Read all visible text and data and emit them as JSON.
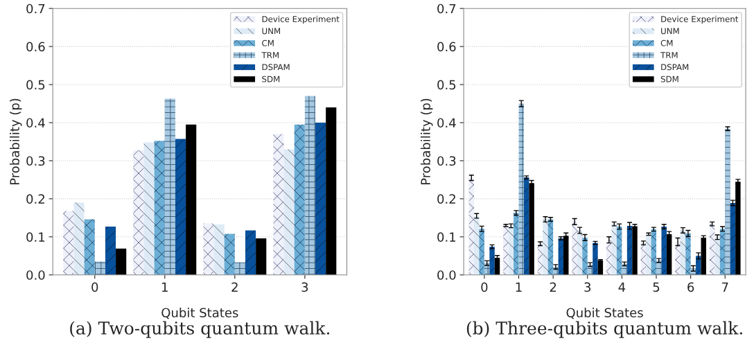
{
  "chart_data": [
    {
      "type": "bar",
      "xlabel": "Qubit States",
      "ylabel": "Probability (p)",
      "categories": [
        "0",
        "1",
        "2",
        "3"
      ],
      "ylim": [
        0,
        0.7
      ],
      "yticks": [
        {
          "value": 0,
          "label": "0.0"
        },
        0.1,
        0.2,
        0.3,
        0.4,
        0.5,
        0.6,
        0.7
      ],
      "grid": "y",
      "legend": "top right",
      "annotations": [
        "(a) Two-qubits quantum walk."
      ],
      "series": [
        {
          "name": "Device Experiment",
          "color": "#eef0fa",
          "values": [
            0.168,
            0.327,
            0.135,
            0.37
          ]
        },
        {
          "name": "UNM",
          "color": "#deebf7",
          "values": [
            0.19,
            0.348,
            0.133,
            0.33
          ]
        },
        {
          "name": "CM",
          "color": "#6baed6",
          "values": [
            0.146,
            0.352,
            0.108,
            0.395
          ]
        },
        {
          "name": "TRM",
          "color": "#a6c8e0",
          "values": [
            0.035,
            0.463,
            0.033,
            0.47
          ]
        },
        {
          "name": "DSPAM",
          "color": "#08519c",
          "values": [
            0.127,
            0.357,
            0.117,
            0.4
          ]
        },
        {
          "name": "SDM",
          "color": "#000000",
          "values": [
            0.069,
            0.395,
            0.096,
            0.44
          ]
        }
      ]
    },
    {
      "type": "bar",
      "xlabel": "Qubit States",
      "ylabel": "Probability (p)",
      "categories": [
        "0",
        "1",
        "2",
        "3",
        "4",
        "5",
        "6",
        "7"
      ],
      "ylim": [
        0,
        0.7
      ],
      "yticks": [
        {
          "value": 0,
          "label": "0.0"
        },
        0.1,
        0.2,
        0.3,
        0.4,
        0.5,
        0.6,
        0.7
      ],
      "grid": "y",
      "legend": "top right",
      "annotations": [
        "(b) Three-qubits quantum walk."
      ],
      "series": [
        {
          "name": "Device Experiment",
          "color": "#eef0fa",
          "values": [
            0.255,
            0.13,
            0.082,
            0.14,
            0.092,
            0.084,
            0.087,
            0.134
          ],
          "errors": [
            0.007,
            0.003,
            0.005,
            0.008,
            0.008,
            0.005,
            0.01,
            0.005
          ]
        },
        {
          "name": "UNM",
          "color": "#deebf7",
          "values": [
            0.155,
            0.129,
            0.146,
            0.117,
            0.134,
            0.107,
            0.117,
            0.099
          ],
          "errors": [
            0.006,
            0.005,
            0.007,
            0.008,
            0.005,
            0.003,
            0.007,
            0.006
          ]
        },
        {
          "name": "CM",
          "color": "#6baed6",
          "values": [
            0.121,
            0.163,
            0.146,
            0.098,
            0.127,
            0.12,
            0.109,
            0.121
          ],
          "errors": [
            0.007,
            0.006,
            0.005,
            0.008,
            0.007,
            0.005,
            0.008,
            0.006
          ]
        },
        {
          "name": "TRM",
          "color": "#a6c8e0",
          "values": [
            0.031,
            0.45,
            0.021,
            0.027,
            0.029,
            0.038,
            0.017,
            0.384
          ],
          "errors": [
            0.006,
            0.008,
            0.006,
            0.005,
            0.005,
            0.005,
            0.007,
            0.005
          ]
        },
        {
          "name": "DSPAM",
          "color": "#08519c",
          "values": [
            0.074,
            0.256,
            0.096,
            0.084,
            0.129,
            0.127,
            0.05,
            0.189
          ],
          "errors": [
            0.005,
            0.004,
            0.004,
            0.004,
            0.009,
            0.006,
            0.008,
            0.007
          ]
        },
        {
          "name": "SDM",
          "color": "#000000",
          "values": [
            0.045,
            0.241,
            0.103,
            0.038,
            0.128,
            0.107,
            0.098,
            0.245
          ],
          "errors": [
            0.006,
            0.007,
            0.007,
            0.002,
            0.005,
            0.007,
            0.005,
            0.006
          ]
        }
      ]
    }
  ]
}
